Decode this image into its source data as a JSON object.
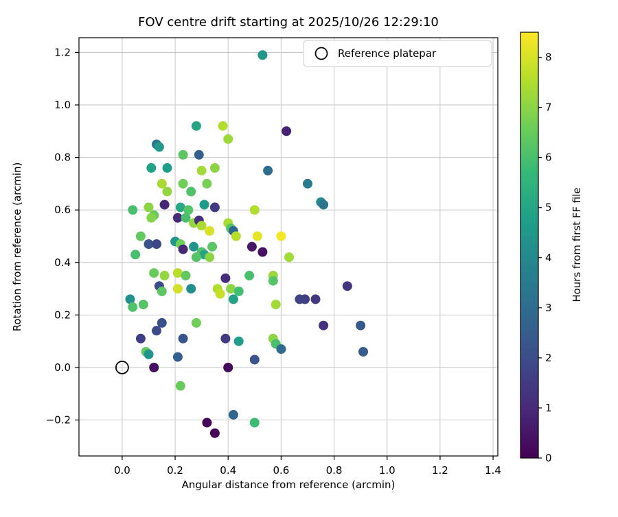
{
  "legend": {
    "label": "Reference platepar"
  },
  "colors": {
    "grid": "#c6c6c6",
    "frame": "#000000",
    "legend_border": "#cccccc",
    "viridis_stops": [
      "#440154",
      "#482878",
      "#3e4989",
      "#31688e",
      "#26828e",
      "#1f9e89",
      "#35b779",
      "#6ece58",
      "#b5de2b",
      "#fde725"
    ]
  },
  "chart_data": {
    "type": "scatter",
    "title": "FOV centre drift starting at 2025/10/26 12:29:10",
    "xlabel": "Angular distance from reference (arcmin)",
    "ylabel": "Rotation from reference (arcmin)",
    "colorbar_label": "Hours from first FF file",
    "xlim": [
      -0.163,
      1.418
    ],
    "ylim": [
      -0.337,
      1.256
    ],
    "xticks": [
      0.0,
      0.2,
      0.4,
      0.6,
      0.8,
      1.0,
      1.2,
      1.4
    ],
    "yticks": [
      -0.2,
      0.0,
      0.2,
      0.4,
      0.6,
      0.8,
      1.0,
      1.2
    ],
    "grid": true,
    "legend_position": "upper right",
    "color_range": [
      0,
      8.5
    ],
    "colorbar_ticks": [
      0,
      1,
      2,
      3,
      4,
      5,
      6,
      7,
      8
    ],
    "reference_point": {
      "x": 0.0,
      "y": 0.0
    },
    "points": [
      [
        0.53,
        1.19,
        4.5
      ],
      [
        0.28,
        0.92,
        5.0
      ],
      [
        0.38,
        0.92,
        7.5
      ],
      [
        0.4,
        0.87,
        7.2
      ],
      [
        0.62,
        0.9,
        0.8
      ],
      [
        0.13,
        0.85,
        3.4
      ],
      [
        0.14,
        0.84,
        4.6
      ],
      [
        0.23,
        0.81,
        6.3
      ],
      [
        0.29,
        0.81,
        2.6
      ],
      [
        0.11,
        0.76,
        4.9
      ],
      [
        0.17,
        0.76,
        4.7
      ],
      [
        0.3,
        0.75,
        7.3
      ],
      [
        0.35,
        0.76,
        7.0
      ],
      [
        0.55,
        0.75,
        3.0
      ],
      [
        0.15,
        0.7,
        7.4
      ],
      [
        0.23,
        0.7,
        6.6
      ],
      [
        0.7,
        0.7,
        3.5
      ],
      [
        0.17,
        0.67,
        7.1
      ],
      [
        0.26,
        0.67,
        6.1
      ],
      [
        0.32,
        0.7,
        6.7
      ],
      [
        0.75,
        0.63,
        4.1
      ],
      [
        0.76,
        0.62,
        3.3
      ],
      [
        0.04,
        0.6,
        6.0
      ],
      [
        0.1,
        0.61,
        7.0
      ],
      [
        0.12,
        0.58,
        6.5
      ],
      [
        0.16,
        0.62,
        0.9
      ],
      [
        0.22,
        0.61,
        5.1
      ],
      [
        0.25,
        0.6,
        6.2
      ],
      [
        0.31,
        0.62,
        4.6
      ],
      [
        0.35,
        0.61,
        1.5
      ],
      [
        0.5,
        0.6,
        7.5
      ],
      [
        0.11,
        0.57,
        6.9
      ],
      [
        0.21,
        0.57,
        1.0
      ],
      [
        0.24,
        0.57,
        6.0
      ],
      [
        0.27,
        0.55,
        7.1
      ],
      [
        0.29,
        0.56,
        1.2
      ],
      [
        0.3,
        0.54,
        7.4
      ],
      [
        0.4,
        0.55,
        7.4
      ],
      [
        0.41,
        0.53,
        6.2
      ],
      [
        0.33,
        0.52,
        8.0
      ],
      [
        0.42,
        0.52,
        2.8
      ],
      [
        0.43,
        0.5,
        7.6
      ],
      [
        0.51,
        0.5,
        8.2
      ],
      [
        0.6,
        0.5,
        8.4
      ],
      [
        0.07,
        0.5,
        6.4
      ],
      [
        0.1,
        0.47,
        2.2
      ],
      [
        0.13,
        0.47,
        1.8
      ],
      [
        0.2,
        0.48,
        4.5
      ],
      [
        0.22,
        0.47,
        6.6
      ],
      [
        0.23,
        0.45,
        0.9
      ],
      [
        0.27,
        0.46,
        4.4
      ],
      [
        0.3,
        0.44,
        6.1
      ],
      [
        0.31,
        0.43,
        5.0
      ],
      [
        0.34,
        0.46,
        6.3
      ],
      [
        0.49,
        0.46,
        0.5
      ],
      [
        0.53,
        0.44,
        0.4
      ],
      [
        0.05,
        0.43,
        6.0
      ],
      [
        0.28,
        0.42,
        6.2
      ],
      [
        0.33,
        0.42,
        7.0
      ],
      [
        0.63,
        0.42,
        7.3
      ],
      [
        0.12,
        0.36,
        6.5
      ],
      [
        0.16,
        0.35,
        7.1
      ],
      [
        0.21,
        0.36,
        7.6
      ],
      [
        0.24,
        0.35,
        6.4
      ],
      [
        0.39,
        0.34,
        1.1
      ],
      [
        0.48,
        0.35,
        6.0
      ],
      [
        0.57,
        0.35,
        7.2
      ],
      [
        0.57,
        0.33,
        6.2
      ],
      [
        0.14,
        0.31,
        2.0
      ],
      [
        0.15,
        0.29,
        6.3
      ],
      [
        0.21,
        0.3,
        7.9
      ],
      [
        0.26,
        0.3,
        4.2
      ],
      [
        0.36,
        0.3,
        7.5
      ],
      [
        0.37,
        0.28,
        7.8
      ],
      [
        0.41,
        0.3,
        7.0
      ],
      [
        0.44,
        0.29,
        5.9
      ],
      [
        0.67,
        0.26,
        1.7
      ],
      [
        0.69,
        0.26,
        1.6
      ],
      [
        0.73,
        0.26,
        1.4
      ],
      [
        0.85,
        0.31,
        1.3
      ],
      [
        0.03,
        0.26,
        4.3
      ],
      [
        0.04,
        0.23,
        6.1
      ],
      [
        0.08,
        0.24,
        6.2
      ],
      [
        0.42,
        0.26,
        4.9
      ],
      [
        0.58,
        0.24,
        7.3
      ],
      [
        0.76,
        0.16,
        1.2
      ],
      [
        0.9,
        0.16,
        2.4
      ],
      [
        0.28,
        0.17,
        6.6
      ],
      [
        0.15,
        0.17,
        2.1
      ],
      [
        0.13,
        0.14,
        1.9
      ],
      [
        0.07,
        0.11,
        1.6
      ],
      [
        0.23,
        0.11,
        2.3
      ],
      [
        0.39,
        0.11,
        1.5
      ],
      [
        0.44,
        0.1,
        4.7
      ],
      [
        0.57,
        0.11,
        7.0
      ],
      [
        0.58,
        0.09,
        6.0
      ],
      [
        0.09,
        0.06,
        6.4
      ],
      [
        0.1,
        0.05,
        4.4
      ],
      [
        0.21,
        0.04,
        2.6
      ],
      [
        0.5,
        0.03,
        2.2
      ],
      [
        0.6,
        0.07,
        2.9
      ],
      [
        0.91,
        0.06,
        2.5
      ],
      [
        0.12,
        0.0,
        0.3
      ],
      [
        0.4,
        0.0,
        0.2
      ],
      [
        0.22,
        -0.07,
        6.5
      ],
      [
        0.42,
        -0.18,
        2.7
      ],
      [
        0.32,
        -0.21,
        0.1
      ],
      [
        0.5,
        -0.21,
        5.8
      ],
      [
        0.35,
        -0.25,
        0.05
      ]
    ]
  }
}
